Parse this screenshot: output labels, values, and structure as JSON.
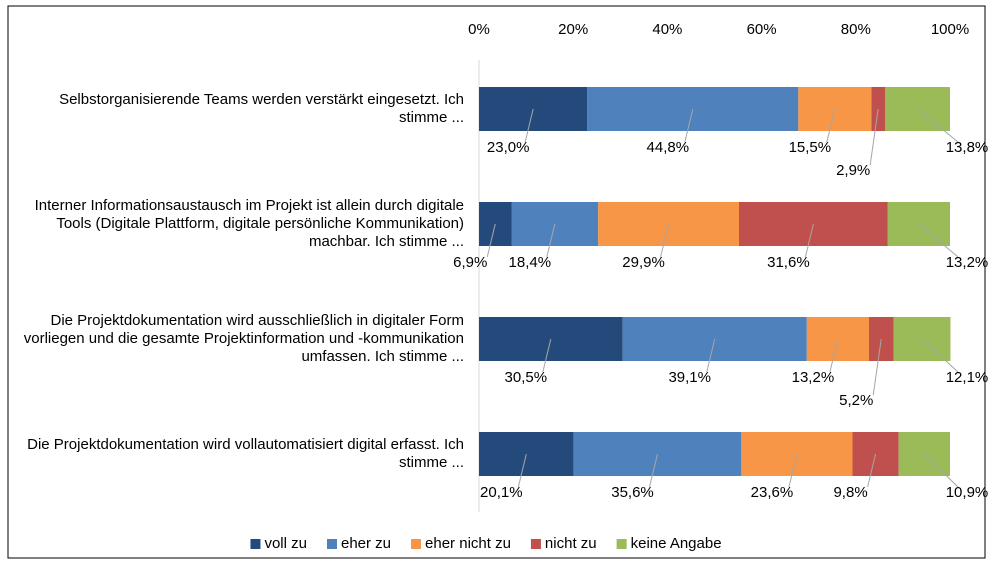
{
  "chart_data": {
    "type": "bar",
    "orientation": "horizontal",
    "stacked": true,
    "categories": [
      "Selbstorganisierende Teams werden verstärkt eingesetzt. Ich stimme ...",
      "Interner Informationsaustausch im Projekt ist allein durch digitale Tools (Digitale Plattform, digitale persönliche Kommunikation) machbar. Ich stimme ...",
      "Die Projektdokumentation wird ausschließlich in digitaler Form vorliegen und die gesamte Projektinformation und -kommunikation umfassen. Ich stimme ...",
      "Die Projektdokumentation wird vollautomatisiert digital erfasst. Ich stimme ..."
    ],
    "series": [
      {
        "name": "voll zu",
        "color": "#244a7c",
        "values": [
          23.0,
          6.9,
          30.5,
          20.1
        ],
        "value_labels": [
          "23,0%",
          "6,9%",
          "30,5%",
          "20,1%"
        ]
      },
      {
        "name": "eher zu",
        "color": "#4f81bd",
        "values": [
          44.8,
          18.4,
          39.1,
          35.6
        ],
        "value_labels": [
          "44,8%",
          "18,4%",
          "39,1%",
          "35,6%"
        ]
      },
      {
        "name": "eher nicht zu",
        "color": "#f79646",
        "values": [
          15.5,
          29.9,
          13.2,
          23.6
        ],
        "value_labels": [
          "15,5%",
          "29,9%",
          "13,2%",
          "23,6%"
        ]
      },
      {
        "name": "nicht zu",
        "color": "#c0504d",
        "values": [
          2.9,
          31.6,
          5.2,
          9.8
        ],
        "value_labels": [
          "2,9%",
          "31,6%",
          "5,2%",
          "9,8%"
        ]
      },
      {
        "name": "keine Angabe",
        "color": "#9bbb59",
        "values": [
          13.8,
          13.2,
          12.1,
          10.9
        ],
        "value_labels": [
          "13,8%",
          "13,2%",
          "12,1%",
          "10,9%"
        ]
      }
    ],
    "xlim": [
      0,
      100
    ],
    "xticks": [
      {
        "value": 0,
        "label": "0%"
      },
      {
        "value": 20,
        "label": "20%"
      },
      {
        "value": 40,
        "label": "40%"
      },
      {
        "value": 60,
        "label": "60%"
      },
      {
        "value": 80,
        "label": "80%"
      },
      {
        "value": 100,
        "label": "100%"
      }
    ],
    "legend": "bottom"
  }
}
